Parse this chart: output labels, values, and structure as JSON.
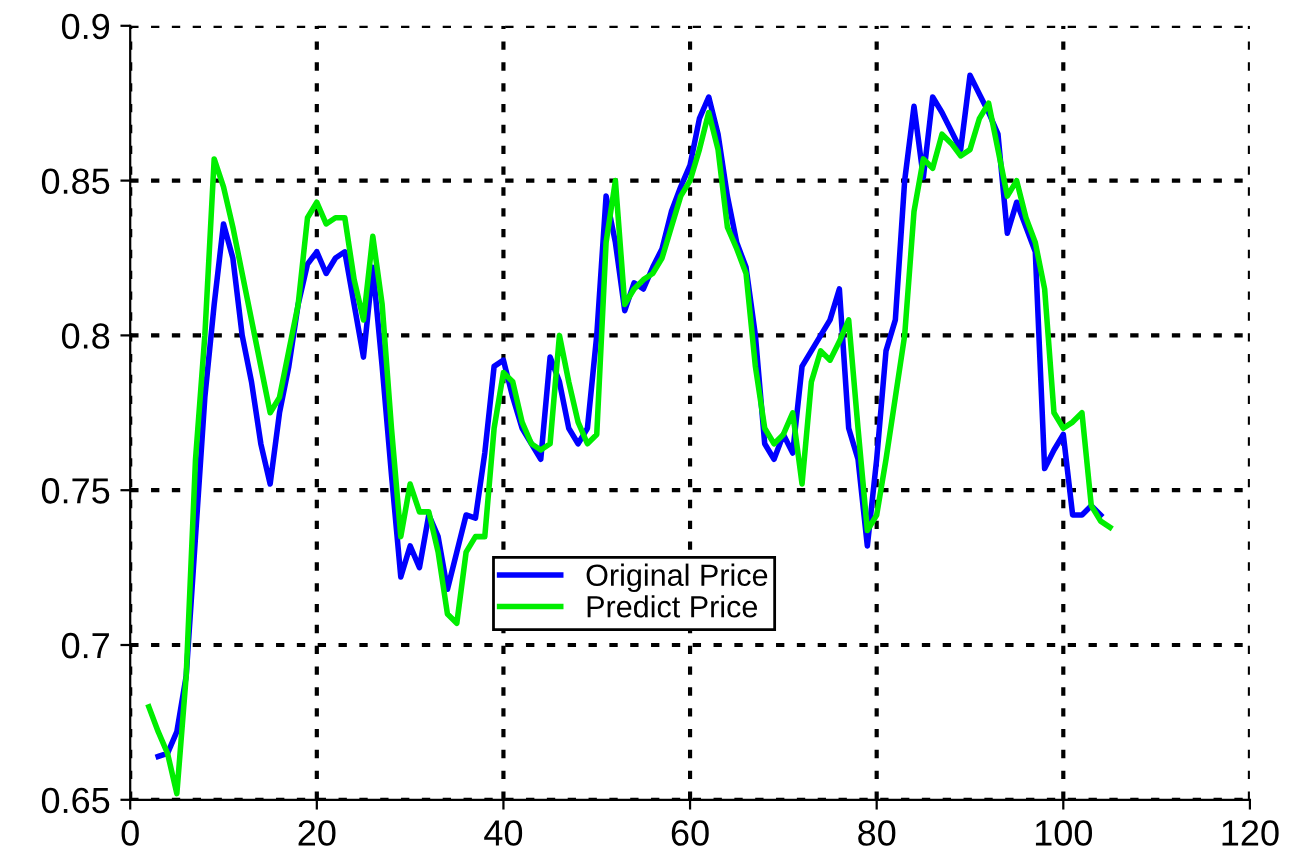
{
  "chart_data": {
    "type": "line",
    "xlim": [
      0,
      120
    ],
    "ylim": [
      0.65,
      0.9
    ],
    "xticks": [
      0,
      20,
      40,
      60,
      80,
      100,
      120
    ],
    "yticks": [
      0.65,
      0.7,
      0.75,
      0.8,
      0.85,
      0.9
    ],
    "grid": true,
    "legend": "bottom",
    "marker": "none",
    "line_style": "solid",
    "series": [
      {
        "name": "Original Price",
        "color": "#0000ff",
        "x": [
          3,
          4,
          5,
          6,
          7,
          8,
          9,
          10,
          11,
          12,
          13,
          14,
          15,
          16,
          17,
          18,
          19,
          20,
          21,
          22,
          23,
          24,
          25,
          26,
          27,
          28,
          29,
          30,
          31,
          32,
          33,
          34,
          35,
          36,
          37,
          38,
          39,
          40,
          41,
          42,
          43,
          44,
          45,
          46,
          47,
          48,
          49,
          50,
          51,
          52,
          53,
          54,
          55,
          56,
          57,
          58,
          59,
          60,
          61,
          62,
          63,
          64,
          65,
          66,
          67,
          68,
          69,
          70,
          71,
          72,
          73,
          74,
          75,
          76,
          77,
          78,
          79,
          80,
          81,
          82,
          83,
          84,
          85,
          86,
          87,
          88,
          89,
          90,
          91,
          92,
          93,
          94,
          95,
          96,
          97,
          98,
          99,
          100,
          101,
          102,
          103,
          104
        ],
        "values": [
          0.664,
          0.665,
          0.672,
          0.69,
          0.735,
          0.78,
          0.81,
          0.836,
          0.825,
          0.8,
          0.785,
          0.765,
          0.752,
          0.775,
          0.79,
          0.81,
          0.823,
          0.827,
          0.82,
          0.825,
          0.827,
          0.81,
          0.793,
          0.822,
          0.79,
          0.755,
          0.722,
          0.732,
          0.725,
          0.742,
          0.735,
          0.718,
          0.73,
          0.742,
          0.741,
          0.762,
          0.79,
          0.792,
          0.78,
          0.77,
          0.765,
          0.76,
          0.793,
          0.785,
          0.77,
          0.765,
          0.77,
          0.8,
          0.845,
          0.83,
          0.808,
          0.817,
          0.815,
          0.822,
          0.828,
          0.84,
          0.848,
          0.855,
          0.87,
          0.877,
          0.865,
          0.845,
          0.83,
          0.822,
          0.8,
          0.765,
          0.76,
          0.768,
          0.762,
          0.79,
          0.795,
          0.8,
          0.805,
          0.815,
          0.77,
          0.76,
          0.732,
          0.76,
          0.795,
          0.805,
          0.85,
          0.874,
          0.851,
          0.877,
          0.872,
          0.866,
          0.86,
          0.884,
          0.878,
          0.872,
          0.865,
          0.833,
          0.843,
          0.835,
          0.827,
          0.757,
          0.763,
          0.768,
          0.742,
          0.742,
          0.745,
          0.742
        ]
      },
      {
        "name": "Predict Price",
        "color": "#00ee00",
        "x": [
          2,
          3,
          4,
          5,
          6,
          7,
          8,
          9,
          10,
          11,
          12,
          13,
          14,
          15,
          16,
          17,
          18,
          19,
          20,
          21,
          22,
          23,
          24,
          25,
          26,
          27,
          28,
          29,
          30,
          31,
          32,
          33,
          34,
          35,
          36,
          37,
          38,
          39,
          40,
          41,
          42,
          43,
          44,
          45,
          46,
          47,
          48,
          49,
          50,
          51,
          52,
          53,
          54,
          55,
          56,
          57,
          58,
          59,
          60,
          61,
          62,
          63,
          64,
          65,
          66,
          67,
          68,
          69,
          70,
          71,
          72,
          73,
          74,
          75,
          76,
          77,
          78,
          79,
          80,
          81,
          82,
          83,
          84,
          85,
          86,
          87,
          88,
          89,
          90,
          91,
          92,
          93,
          94,
          95,
          96,
          97,
          98,
          99,
          100,
          101,
          102,
          103,
          104,
          105
        ],
        "values": [
          0.68,
          0.672,
          0.665,
          0.652,
          0.69,
          0.76,
          0.8,
          0.857,
          0.848,
          0.835,
          0.82,
          0.805,
          0.79,
          0.775,
          0.78,
          0.795,
          0.81,
          0.838,
          0.843,
          0.836,
          0.838,
          0.838,
          0.818,
          0.805,
          0.832,
          0.81,
          0.77,
          0.735,
          0.752,
          0.743,
          0.743,
          0.73,
          0.71,
          0.707,
          0.73,
          0.735,
          0.735,
          0.77,
          0.788,
          0.785,
          0.772,
          0.765,
          0.763,
          0.765,
          0.8,
          0.785,
          0.772,
          0.765,
          0.768,
          0.83,
          0.85,
          0.81,
          0.815,
          0.818,
          0.82,
          0.825,
          0.835,
          0.845,
          0.85,
          0.86,
          0.872,
          0.86,
          0.835,
          0.828,
          0.82,
          0.79,
          0.77,
          0.765,
          0.768,
          0.775,
          0.752,
          0.785,
          0.795,
          0.792,
          0.798,
          0.805,
          0.77,
          0.737,
          0.742,
          0.76,
          0.78,
          0.8,
          0.84,
          0.857,
          0.854,
          0.865,
          0.862,
          0.858,
          0.86,
          0.87,
          0.875,
          0.86,
          0.845,
          0.85,
          0.838,
          0.83,
          0.815,
          0.775,
          0.77,
          0.772,
          0.775,
          0.745,
          0.74,
          0.738
        ]
      }
    ]
  }
}
